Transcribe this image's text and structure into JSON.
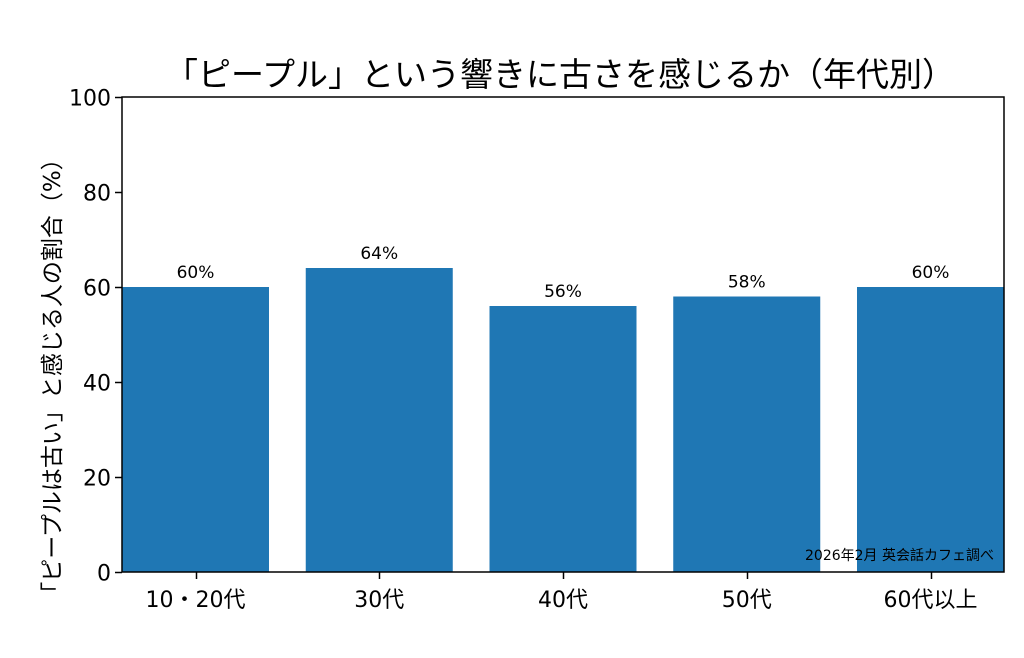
{
  "chart_data": {
    "type": "bar",
    "title": "「ピープル」という響きに古さを感じるか（年代別）",
    "ylabel": "「ピープルは古い」と感じる人の割合（%）",
    "xlabel": "",
    "categories": [
      "10・20代",
      "30代",
      "40代",
      "50代",
      "60代以上"
    ],
    "values": [
      60,
      64,
      56,
      58,
      60
    ],
    "data_labels": [
      "60%",
      "64%",
      "56%",
      "58%",
      "60%"
    ],
    "ylim": [
      0,
      100
    ],
    "yticks": [
      0,
      20,
      40,
      60,
      80,
      100
    ],
    "grid": false,
    "bar_color": "#1f77b4",
    "annotation": "2026年2月 英会話カフェ調べ"
  }
}
